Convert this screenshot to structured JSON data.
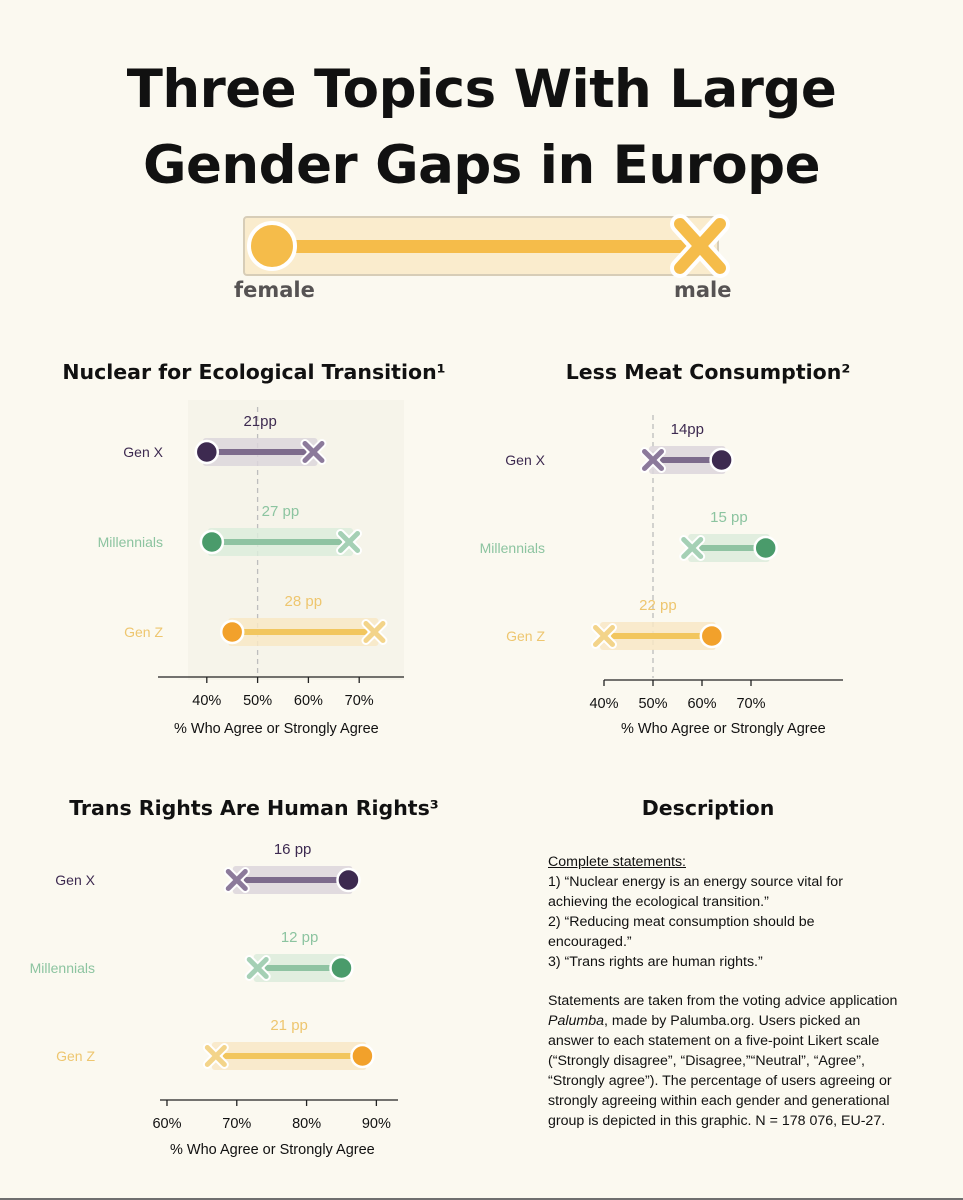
{
  "title": {
    "line1": "Three Topics With Large",
    "line2": "Gender Gaps in Europe"
  },
  "legend": {
    "female_label": "female",
    "male_label": "male"
  },
  "colors": {
    "background": "#fbf9f0",
    "genx": "#3d2a50",
    "genx_light": "#8c7a9b",
    "millennials": "#4a9b6b",
    "millennials_light": "#a5d0b5",
    "genz": "#f2a12b",
    "genz_light": "#f3d48a",
    "legend_yellow": "#f5bc4a"
  },
  "chart_data": [
    {
      "type": "dumbbell",
      "title": "Nuclear for Ecological Transition¹",
      "xlabel": "% Who Agree or Strongly Agree",
      "xlim": [
        30,
        80
      ],
      "xticks": [
        "40%",
        "50%",
        "60%",
        "70%"
      ],
      "reference_line": 50,
      "categories": [
        "Gen X",
        "Millennials",
        "Gen Z"
      ],
      "female": [
        40,
        41,
        45
      ],
      "male": [
        61,
        68,
        73
      ],
      "gap_labels": [
        "21pp",
        "27 pp",
        "28 pp"
      ]
    },
    {
      "type": "dumbbell",
      "title": "Less Meat Consumption²",
      "xlabel": "% Who Agree or Strongly Agree",
      "xlim": [
        30,
        78
      ],
      "xticks": [
        "40%",
        "50%",
        "60%",
        "70%"
      ],
      "reference_line": 50,
      "categories": [
        "Gen X",
        "Millennials",
        "Gen Z"
      ],
      "female": [
        64,
        73,
        62
      ],
      "male": [
        50,
        58,
        40
      ],
      "gap_labels": [
        "14pp",
        "15 pp",
        "22 pp"
      ]
    },
    {
      "type": "dumbbell",
      "title": "Trans Rights Are Human Rights³",
      "xlabel": "% Who Agree or Strongly Agree",
      "xlim": [
        59,
        92
      ],
      "xticks": [
        "60%",
        "70%",
        "80%",
        "90%"
      ],
      "reference_line": null,
      "categories": [
        "Gen X",
        "Millennials",
        "Gen Z"
      ],
      "female": [
        86,
        85,
        88
      ],
      "male": [
        70,
        73,
        67
      ],
      "gap_labels": [
        "16 pp",
        "12 pp",
        "21 pp"
      ]
    }
  ],
  "description": {
    "heading": "Description",
    "subheading": "Complete statements:",
    "statements": [
      "1) “Nuclear energy is an energy source vital for achieving the ecological transition.”",
      "2) “Reducing meat consumption should be encouraged.”",
      "3) “Trans rights are human rights.”"
    ],
    "para1_before": "Statements are taken from the voting advice application ",
    "para1_app": "Palumba",
    "para1_after": ", made by Palumba.org. Users picked an answer to each statement on a five-point Likert scale (“Strongly disagree”, “Disagree,”“Neutral”, “Agree”, “Strongly agree”). The percentage of users agreeing or strongly agreeing within each gender and generational group is depicted in this graphic. N = 178 076, EU-27."
  }
}
